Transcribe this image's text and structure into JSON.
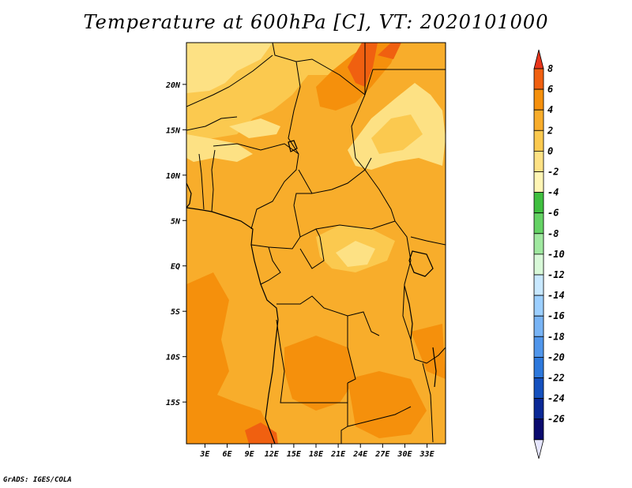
{
  "title": "Temperature at 600hPa [C], VT: 2020101000",
  "credit": "GrADS: IGES/COLA",
  "chart_data": {
    "type": "heatmap",
    "variable": "Temperature",
    "level": "600hPa",
    "units": "C",
    "valid_time": "2020101000",
    "lat_labels": [
      "20N",
      "15N",
      "10N",
      "5N",
      "EQ",
      "5S",
      "10S",
      "15S"
    ],
    "lat_values": [
      20,
      15,
      10,
      5,
      0,
      -5,
      -10,
      -15
    ],
    "lon_labels": [
      "3E",
      "6E",
      "9E",
      "12E",
      "15E",
      "18E",
      "21E",
      "24E",
      "27E",
      "30E",
      "33E"
    ],
    "lon_values": [
      3,
      6,
      9,
      12,
      15,
      18,
      21,
      24,
      27,
      30,
      33
    ],
    "colorbar": {
      "labels": [
        "8",
        "6",
        "4",
        "2",
        "0",
        "-2",
        "-4",
        "-6",
        "-8",
        "-10",
        "-12",
        "-14",
        "-16",
        "-18",
        "-20",
        "-22",
        "-24",
        "-26"
      ],
      "colors": [
        "#e8351b",
        "#f06010",
        "#f5900c",
        "#f8ad2b",
        "#fbc94f",
        "#fde184",
        "#fff5b5",
        "#3fbf3f",
        "#64d264",
        "#a0e8a0",
        "#d8f8d8",
        "#c8e8ff",
        "#9ccfff",
        "#78b4f5",
        "#5096eb",
        "#2d78dc",
        "#1450be",
        "#0a2896",
        "#0a0a6e",
        "#e6e6ff"
      ]
    }
  }
}
